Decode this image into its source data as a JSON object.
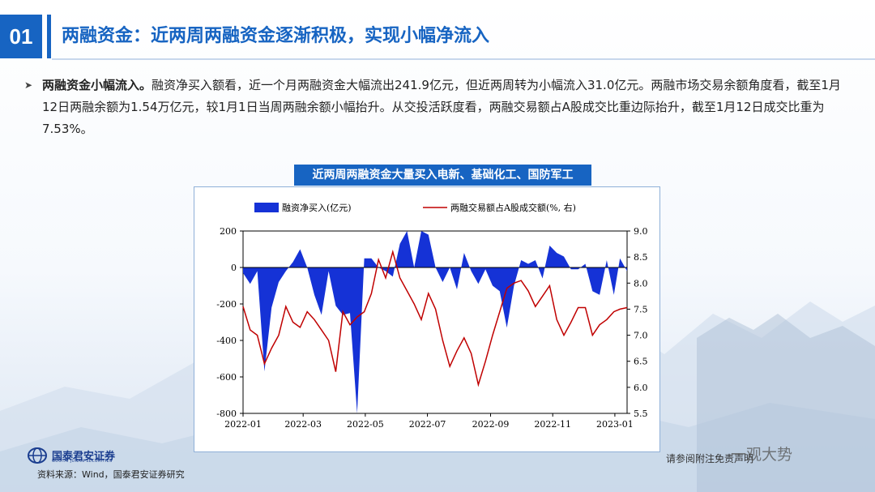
{
  "header": {
    "number": "01",
    "title": "两融资金：近两周两融资金逐渐积极，实现小幅净流入"
  },
  "paragraph": {
    "bold_lead": "两融资金小幅流入。",
    "body": "融资净买入额看，近一个月两融资金大幅流出241.9亿元，但近两周转为小幅流入31.0亿元。两融市场交易余额角度看，截至1月12日两融余额为1.54万亿元，较1月1日当周两融余额小幅抬升。从交投活跃度看，两融交易额占A股成交比重边际抬升，截至1月12日成交比重为7.53%。"
  },
  "chart_title": "近两周两融资金大量买入电新、基础化工、国防军工",
  "footer": {
    "logo_cn": "国泰君安证券",
    "logo_en": "GUOTAI JUNAN SECURITIES",
    "source": "资料来源：Wind，国泰君安证券研究",
    "disclaimer": "请参阅附注免责声明",
    "watermark": "一观大势"
  },
  "colors": {
    "accent": "#1764c2",
    "area": "#1532d6",
    "line": "#c00000"
  },
  "chart_data": {
    "type": "area+line",
    "legend": [
      "融资净买入(亿元)",
      "两融交易额占A股成交额(%, 右)"
    ],
    "legend_position": "top",
    "x_tick_labels": [
      "2022-01",
      "2022-03",
      "2022-05",
      "2022-07",
      "2022-09",
      "2022-11",
      "2023-01"
    ],
    "y_left_ticks": [
      "200",
      "0",
      "-200",
      "-400",
      "-600",
      "-800"
    ],
    "y_left_range": [
      -800,
      200
    ],
    "y_right_ticks": [
      "9.0",
      "8.5",
      "8.0",
      "7.5",
      "7.0",
      "6.5",
      "6.0",
      "5.5"
    ],
    "y_right_range": [
      5.5,
      9.0
    ],
    "x_range": [
      "2022-01-01",
      "2023-01-13"
    ],
    "series": [
      {
        "name": "融资净买入(亿元)",
        "axis": "left",
        "x": [
          "2022-01-01",
          "2022-01-08",
          "2022-01-15",
          "2022-01-22",
          "2022-01-29",
          "2022-02-05",
          "2022-02-12",
          "2022-02-19",
          "2022-02-26",
          "2022-03-05",
          "2022-03-12",
          "2022-03-19",
          "2022-03-26",
          "2022-04-02",
          "2022-04-09",
          "2022-04-16",
          "2022-04-23",
          "2022-04-30",
          "2022-05-07",
          "2022-05-14",
          "2022-05-21",
          "2022-05-28",
          "2022-06-04",
          "2022-06-11",
          "2022-06-18",
          "2022-06-25",
          "2022-07-02",
          "2022-07-09",
          "2022-07-16",
          "2022-07-23",
          "2022-07-30",
          "2022-08-06",
          "2022-08-13",
          "2022-08-20",
          "2022-08-27",
          "2022-09-03",
          "2022-09-10",
          "2022-09-17",
          "2022-09-24",
          "2022-10-01",
          "2022-10-08",
          "2022-10-15",
          "2022-10-22",
          "2022-10-29",
          "2022-11-05",
          "2022-11-12",
          "2022-11-19",
          "2022-11-26",
          "2022-12-03",
          "2022-12-10",
          "2022-12-17",
          "2022-12-24",
          "2022-12-31",
          "2023-01-06",
          "2023-01-13"
        ],
        "values": [
          -30,
          -90,
          -20,
          -570,
          -220,
          -80,
          -20,
          30,
          100,
          0,
          -150,
          -260,
          -20,
          -210,
          -260,
          -250,
          -800,
          50,
          50,
          0,
          -20,
          -50,
          130,
          200,
          0,
          200,
          180,
          0,
          -80,
          0,
          -120,
          80,
          -20,
          -90,
          -10,
          -100,
          -130,
          -330,
          -100,
          40,
          20,
          40,
          -60,
          120,
          80,
          60,
          -10,
          -10,
          20,
          -130,
          -150,
          40,
          -150,
          50,
          -20
        ]
      },
      {
        "name": "两融交易额占A股成交额(%, 右)",
        "axis": "right",
        "x": [
          "2022-01-01",
          "2022-01-08",
          "2022-01-15",
          "2022-01-22",
          "2022-01-29",
          "2022-02-05",
          "2022-02-12",
          "2022-02-19",
          "2022-02-26",
          "2022-03-05",
          "2022-03-12",
          "2022-03-19",
          "2022-03-26",
          "2022-04-02",
          "2022-04-09",
          "2022-04-16",
          "2022-04-23",
          "2022-04-30",
          "2022-05-07",
          "2022-05-14",
          "2022-05-21",
          "2022-05-28",
          "2022-06-04",
          "2022-06-11",
          "2022-06-18",
          "2022-06-25",
          "2022-07-02",
          "2022-07-09",
          "2022-07-16",
          "2022-07-23",
          "2022-07-30",
          "2022-08-06",
          "2022-08-13",
          "2022-08-20",
          "2022-08-27",
          "2022-09-03",
          "2022-09-10",
          "2022-09-17",
          "2022-09-24",
          "2022-10-01",
          "2022-10-08",
          "2022-10-15",
          "2022-10-22",
          "2022-10-29",
          "2022-11-05",
          "2022-11-12",
          "2022-11-19",
          "2022-11-26",
          "2022-12-03",
          "2022-12-10",
          "2022-12-17",
          "2022-12-24",
          "2022-12-31",
          "2023-01-06",
          "2023-01-13"
        ],
        "values": [
          7.55,
          7.1,
          7.0,
          6.45,
          6.75,
          7.0,
          7.55,
          7.25,
          7.15,
          7.45,
          7.3,
          7.1,
          6.9,
          6.3,
          7.45,
          7.2,
          7.35,
          7.45,
          7.8,
          8.45,
          8.1,
          8.6,
          8.1,
          7.85,
          7.6,
          7.3,
          7.8,
          7.5,
          6.9,
          6.4,
          6.7,
          6.95,
          6.65,
          6.05,
          6.5,
          7.0,
          7.45,
          7.9,
          8.0,
          8.05,
          7.85,
          7.55,
          7.75,
          7.95,
          7.3,
          7.0,
          7.25,
          7.53,
          7.53,
          7.0,
          7.2,
          7.3,
          7.45,
          7.5,
          7.53
        ]
      }
    ]
  }
}
